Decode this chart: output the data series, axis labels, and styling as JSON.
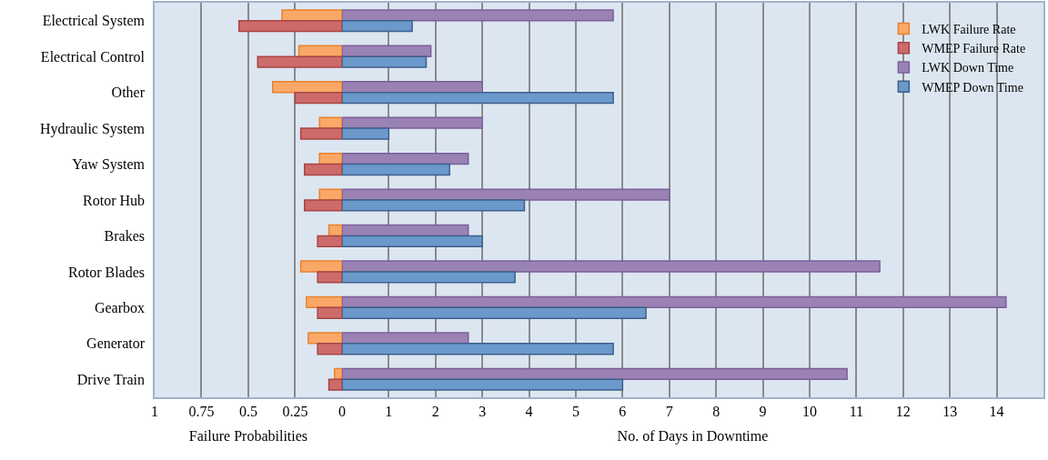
{
  "chart_data": [
    {
      "type": "bar",
      "orientation": "horizontal",
      "categories": [
        "Electrical System",
        "Electrical Control",
        "Other",
        "Hydraulic System",
        "Yaw System",
        "Rotor Hub",
        "Brakes",
        "Rotor Blades",
        "Gearbox",
        "Generator",
        "Drive Train"
      ],
      "series": [
        {
          "name": "LWK Failure Rate",
          "color": "#f9a868",
          "values": [
            0.32,
            0.23,
            0.37,
            0.12,
            0.12,
            0.12,
            0.07,
            0.22,
            0.19,
            0.18,
            0.04
          ]
        },
        {
          "name": "WMEP Failure Rate",
          "color": "#cd6b6b",
          "values": [
            0.55,
            0.45,
            0.25,
            0.22,
            0.2,
            0.2,
            0.13,
            0.13,
            0.13,
            0.13,
            0.07
          ]
        }
      ],
      "xlim": [
        1,
        0
      ],
      "xticks": [
        1,
        0.75,
        0.5,
        0.25,
        0
      ],
      "xlabel": "Failure Probabilities",
      "grid": "x",
      "legend": "top right"
    },
    {
      "type": "bar",
      "orientation": "horizontal",
      "categories": [
        "Electrical System",
        "Electrical Control",
        "Other",
        "Hydraulic System",
        "Yaw System",
        "Rotor Hub",
        "Brakes",
        "Rotor Blades",
        "Gearbox",
        "Generator",
        "Drive Train"
      ],
      "series": [
        {
          "name": "LWK Down Time",
          "color": "#9a83b4",
          "values": [
            5.8,
            1.9,
            3.0,
            3.0,
            2.7,
            7.0,
            2.7,
            11.5,
            14.2,
            2.7,
            10.8
          ]
        },
        {
          "name": "WMEP Down Time",
          "color": "#6b99cc",
          "values": [
            1.5,
            1.8,
            5.8,
            1.0,
            2.3,
            3.9,
            3.0,
            3.7,
            6.5,
            5.8,
            6.0
          ]
        }
      ],
      "xlim": [
        0,
        15
      ],
      "xticks": [
        {
          "value": 0,
          "label": null
        },
        1,
        2,
        3,
        4,
        5,
        6,
        7,
        8,
        9,
        10,
        11,
        12,
        13,
        14
      ],
      "xlabel": "No. of Days in Downtime",
      "grid": "x",
      "legend": "top right",
      "tick_labels": "x"
    }
  ]
}
